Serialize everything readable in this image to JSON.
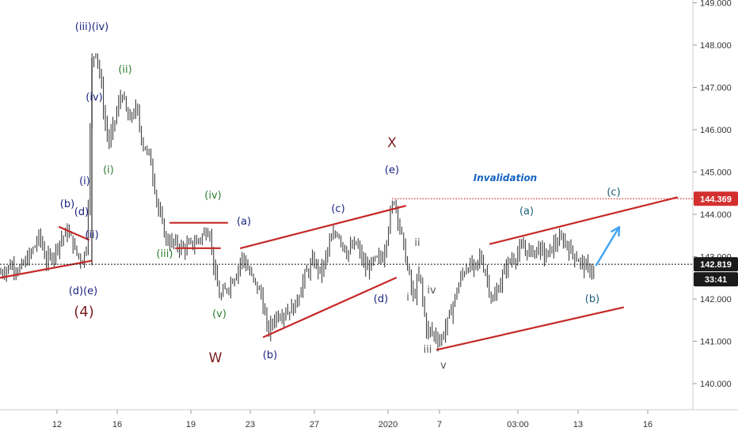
{
  "colors": {
    "background": "#ffffff",
    "candle": "#2a2a2a",
    "trendline": "#c62828",
    "dotted_price": "#111111",
    "invalidation_line": "#d32f2f",
    "invalidation_text": "#1565c0",
    "navy_label": "#1a237e",
    "green_label": "#2e7d32",
    "maroon_label": "#7b1e1e",
    "grey_label": "#555555",
    "teal_label": "#1b5e7a",
    "arrow": "#42a5f5"
  },
  "price_axis": {
    "ticks": [
      "149.000",
      "148.000",
      "147.000",
      "146.000",
      "145.000",
      "144.000",
      "143.000",
      "142.000",
      "141.000",
      "140.000"
    ],
    "invalidation_badge": "144.369",
    "current_price_badge": "142.819",
    "countdown_badge": "33:41"
  },
  "time_axis": {
    "ticks": [
      "12",
      "16",
      "19",
      "23",
      "27",
      "2020",
      "7",
      "03:00",
      "13",
      "16"
    ]
  },
  "annotations": {
    "invalidation": "Invalidation",
    "waves": {
      "iii_iv_top": "(iii)(iv)",
      "ii_green": "(ii)",
      "iv_navy": "(iv)",
      "i_green": "(i)",
      "i_navy": "(i)",
      "b_left": "(b)",
      "d_left": "(d)",
      "ii_left": "(ii)",
      "de_bottom": "(d)(e)",
      "four": "(4)",
      "iv_green": "(iv)",
      "iii_green": "(iii)",
      "v_green": "(v)",
      "w": "W",
      "a_first": "(a)",
      "b_first": "(b)",
      "c_first": "(c)",
      "d_first": "(d)",
      "e_first": "(e)",
      "x": "X",
      "small_ii": "ii",
      "small_i": "i",
      "small_iv": "iv",
      "small_iii": "iii",
      "small_v": "v",
      "a_second": "(a)",
      "b_second": "(b)",
      "c_second": "(c)"
    }
  },
  "chart_data": {
    "type": "candlestick",
    "ylim": [
      139.5,
      149.0
    ],
    "y_ticks": [
      140,
      141,
      142,
      143,
      144,
      145,
      146,
      147,
      148,
      149
    ],
    "x_ticks": [
      "12",
      "16",
      "19",
      "23",
      "27",
      "2020",
      "7",
      "03:00",
      "13",
      "16"
    ],
    "invalidation_level": 144.369,
    "current_price": 142.819,
    "price_path": [
      [
        0,
        142.6
      ],
      [
        14,
        142.8
      ],
      [
        26,
        142.7
      ],
      [
        40,
        143.1
      ],
      [
        50,
        143.5
      ],
      [
        58,
        142.9
      ],
      [
        66,
        143.0
      ],
      [
        76,
        143.4
      ],
      [
        86,
        143.6
      ],
      [
        96,
        143.1
      ],
      [
        104,
        142.9
      ],
      [
        110,
        143.3
      ],
      [
        116,
        147.6
      ],
      [
        121,
        147.9
      ],
      [
        127,
        147.2
      ],
      [
        132,
        146.2
      ],
      [
        138,
        145.7
      ],
      [
        146,
        146.3
      ],
      [
        154,
        146.9
      ],
      [
        162,
        146.2
      ],
      [
        172,
        146.5
      ],
      [
        180,
        145.7
      ],
      [
        190,
        145.3
      ],
      [
        200,
        144.1
      ],
      [
        210,
        143.4
      ],
      [
        220,
        143.3
      ],
      [
        232,
        143.2
      ],
      [
        244,
        143.3
      ],
      [
        256,
        143.5
      ],
      [
        264,
        143.7
      ],
      [
        272,
        142.5
      ],
      [
        278,
        142.0
      ],
      [
        288,
        142.3
      ],
      [
        298,
        142.6
      ],
      [
        306,
        143.0
      ],
      [
        318,
        142.5
      ],
      [
        330,
        142.1
      ],
      [
        338,
        141.2
      ],
      [
        348,
        141.6
      ],
      [
        360,
        141.7
      ],
      [
        372,
        141.8
      ],
      [
        384,
        142.5
      ],
      [
        396,
        142.9
      ],
      [
        406,
        142.6
      ],
      [
        416,
        143.3
      ],
      [
        426,
        143.6
      ],
      [
        438,
        143.1
      ],
      [
        450,
        143.3
      ],
      [
        462,
        142.7
      ],
      [
        474,
        142.9
      ],
      [
        484,
        143.0
      ],
      [
        492,
        143.9
      ],
      [
        498,
        144.4
      ],
      [
        506,
        143.6
      ],
      [
        514,
        142.8
      ],
      [
        522,
        142.0
      ],
      [
        530,
        142.6
      ],
      [
        538,
        141.3
      ],
      [
        546,
        141.2
      ],
      [
        556,
        141.0
      ],
      [
        566,
        141.5
      ],
      [
        574,
        142.0
      ],
      [
        582,
        142.5
      ],
      [
        590,
        142.8
      ],
      [
        600,
        142.7
      ],
      [
        606,
        143.0
      ],
      [
        614,
        142.6
      ],
      [
        622,
        141.9
      ],
      [
        630,
        142.3
      ],
      [
        640,
        142.8
      ],
      [
        650,
        143.0
      ],
      [
        660,
        143.2
      ],
      [
        670,
        143.1
      ],
      [
        680,
        143.2
      ],
      [
        690,
        143.0
      ],
      [
        700,
        143.3
      ],
      [
        712,
        143.4
      ],
      [
        722,
        143.1
      ],
      [
        732,
        142.9
      ],
      [
        742,
        142.7
      ],
      [
        752,
        142.7
      ]
    ],
    "trendlines": [
      [
        [
          0,
          142.5
        ],
        [
          115,
          142.9
        ]
      ],
      [
        [
          75,
          143.7
        ],
        [
          112,
          143.4
        ]
      ],
      [
        [
          215,
          143.8
        ],
        [
          287,
          143.8
        ]
      ],
      [
        [
          222,
          143.2
        ],
        [
          278,
          143.2
        ]
      ],
      [
        [
          304,
          143.2
        ],
        [
          512,
          144.2
        ]
      ],
      [
        [
          333,
          141.1
        ],
        [
          500,
          142.5
        ]
      ],
      [
        [
          619,
          143.3
        ],
        [
          855,
          144.4
        ]
      ],
      [
        [
          552,
          140.8
        ],
        [
          787,
          141.8
        ]
      ]
    ],
    "projection_arrow": [
      [
        753,
        142.8
      ],
      [
        782,
        143.7
      ]
    ]
  }
}
